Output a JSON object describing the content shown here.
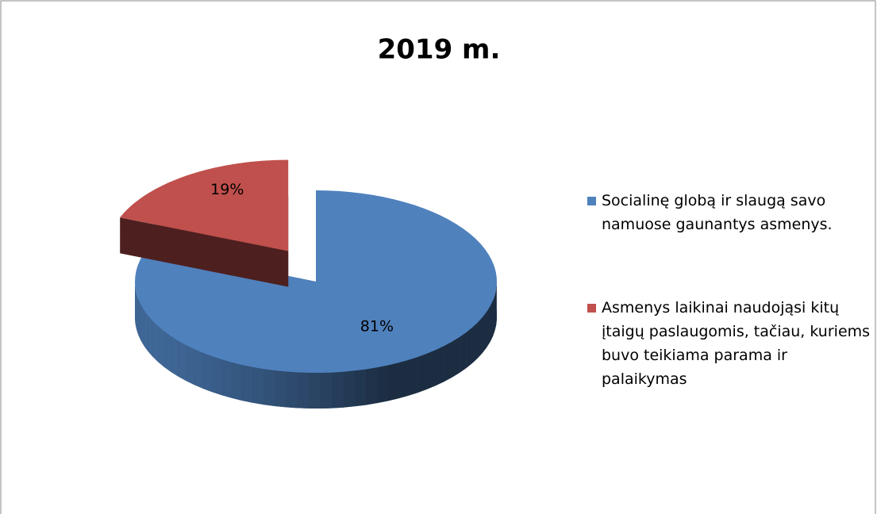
{
  "chart_data": {
    "type": "pie",
    "title": "2019 m.",
    "categories": [
      "Socialinę globą ir slaugą savo namuose gaunantys asmenys.",
      "Asmenys laikinai naudojąsi kitų įtaigų paslaugomis, tačiau, kuriems buvo teikiama parama ir palaikymas"
    ],
    "values": [
      81,
      19
    ],
    "value_labels": [
      "81%",
      "19%"
    ],
    "colors": [
      "#4f81bd",
      "#c0504d"
    ],
    "legend": "right"
  }
}
